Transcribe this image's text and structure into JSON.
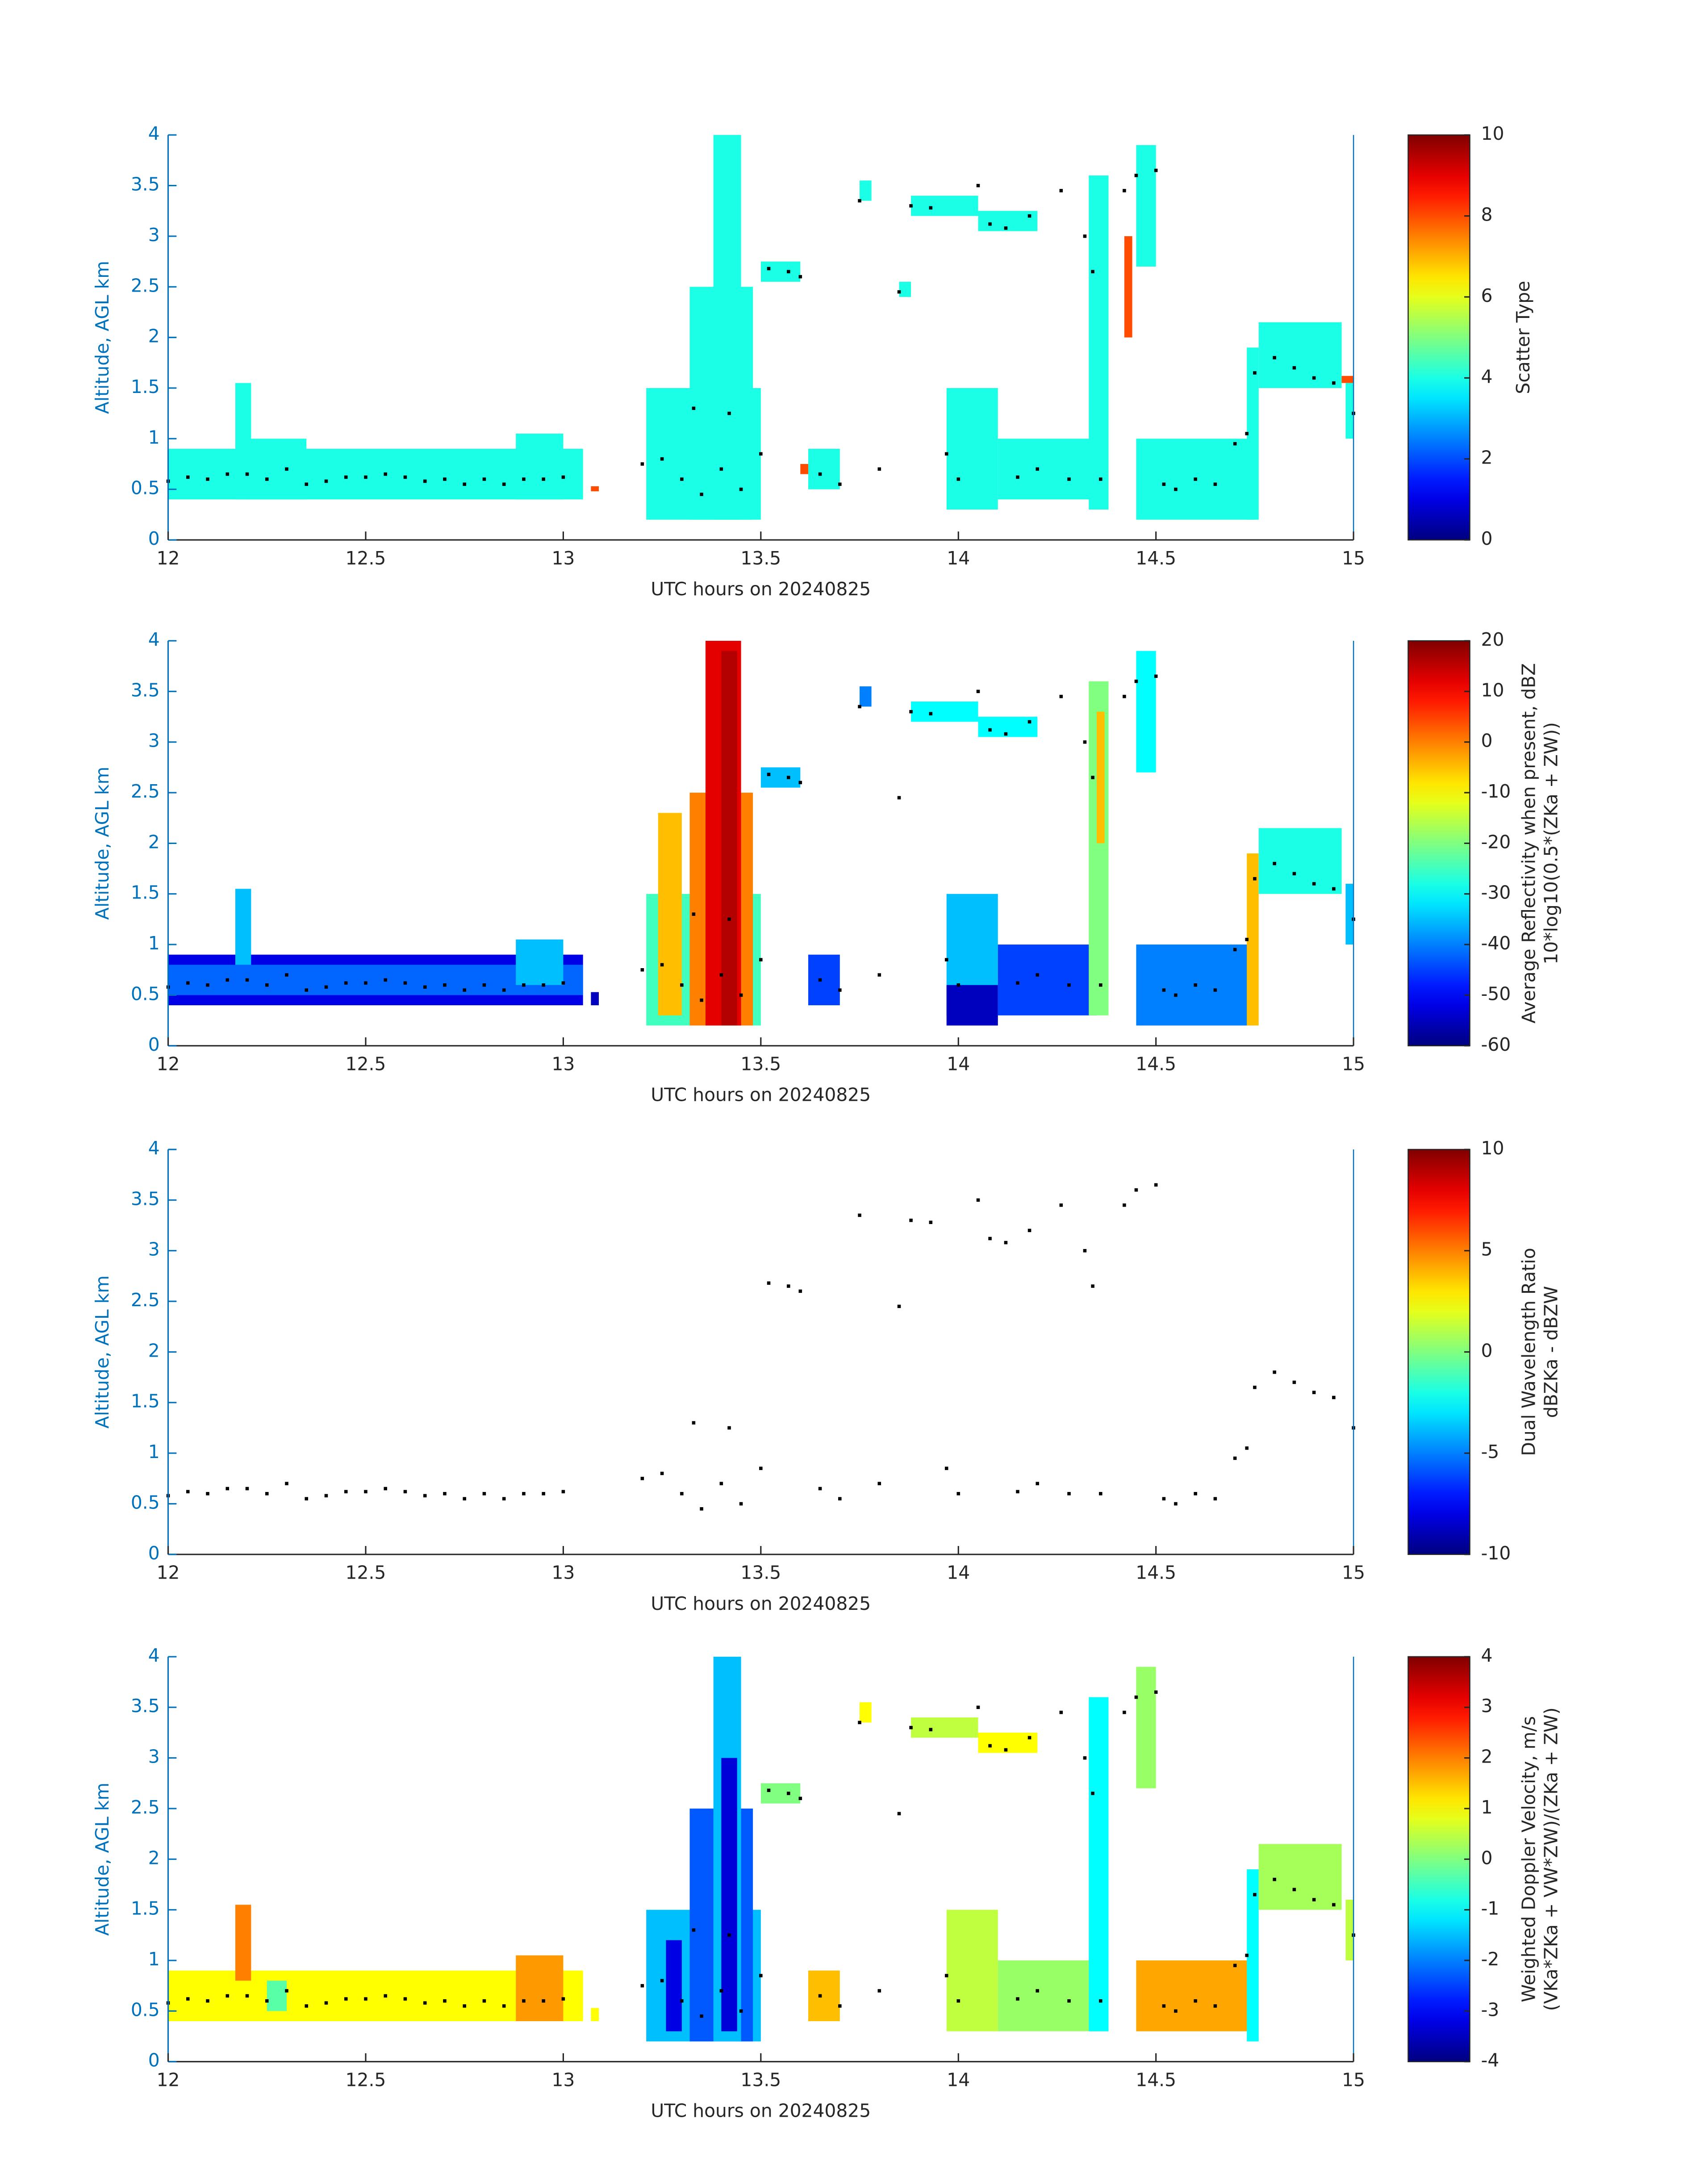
{
  "chart_data": [
    {
      "type": "heatmap",
      "colormap": "jet",
      "xlabel": "UTC hours on 20240825",
      "ylabel": "Altitude, AGL km",
      "xlim": [
        12,
        15
      ],
      "ylim": [
        0,
        4
      ],
      "xticks": [
        12,
        12.5,
        13,
        13.5,
        14,
        14.5,
        15
      ],
      "yticks": [
        0,
        0.5,
        1,
        1.5,
        2,
        2.5,
        3,
        3.5,
        4
      ],
      "colorbar": {
        "label": [
          "Scatter Type"
        ],
        "clim": [
          0,
          10
        ],
        "ticks": [
          0,
          2,
          4,
          6,
          8,
          10
        ]
      },
      "cells": [
        [
          12.0,
          13.05,
          0.4,
          0.9,
          4
        ],
        [
          12.17,
          12.21,
          0.4,
          1.55,
          4
        ],
        [
          12.2,
          12.35,
          0.4,
          1.0,
          4
        ],
        [
          12.88,
          13.0,
          0.4,
          1.05,
          4
        ],
        [
          13.07,
          13.09,
          0.48,
          0.53,
          8
        ],
        [
          13.21,
          13.5,
          0.2,
          1.5,
          4
        ],
        [
          13.32,
          13.48,
          0.2,
          2.5,
          4
        ],
        [
          13.38,
          13.45,
          0.2,
          4.0,
          4
        ],
        [
          13.5,
          13.6,
          2.55,
          2.75,
          4
        ],
        [
          13.6,
          13.62,
          0.65,
          0.75,
          8
        ],
        [
          13.62,
          13.7,
          0.5,
          0.9,
          4
        ],
        [
          13.75,
          13.78,
          3.35,
          3.55,
          4
        ],
        [
          13.85,
          13.88,
          2.4,
          2.55,
          4
        ],
        [
          13.88,
          14.05,
          3.2,
          3.4,
          4
        ],
        [
          13.97,
          14.1,
          0.3,
          1.5,
          4
        ],
        [
          14.05,
          14.2,
          3.05,
          3.25,
          4
        ],
        [
          14.1,
          14.35,
          0.4,
          1.0,
          4
        ],
        [
          14.33,
          14.38,
          0.3,
          3.6,
          4
        ],
        [
          14.42,
          14.44,
          2.0,
          3.0,
          8
        ],
        [
          14.45,
          14.5,
          2.7,
          3.9,
          4
        ],
        [
          14.45,
          14.75,
          0.2,
          1.0,
          4
        ],
        [
          14.73,
          14.76,
          0.2,
          1.9,
          4
        ],
        [
          14.76,
          14.97,
          1.5,
          2.15,
          4
        ],
        [
          14.97,
          15.0,
          1.55,
          1.62,
          8
        ],
        [
          14.98,
          15.0,
          1.0,
          1.55,
          4
        ]
      ],
      "points": {
        "color": "#000000",
        "x": [
          12.0,
          12.05,
          12.1,
          12.15,
          12.2,
          12.25,
          12.3,
          12.35,
          12.4,
          12.45,
          12.5,
          12.55,
          12.6,
          12.65,
          12.7,
          12.75,
          12.8,
          12.85,
          12.9,
          12.95,
          13.0,
          13.2,
          13.25,
          13.3,
          13.33,
          13.35,
          13.4,
          13.42,
          13.45,
          13.5,
          13.52,
          13.57,
          13.6,
          13.65,
          13.7,
          13.75,
          13.8,
          13.85,
          13.88,
          13.93,
          13.97,
          14.0,
          14.05,
          14.08,
          14.12,
          14.15,
          14.18,
          14.2,
          14.26,
          14.28,
          14.32,
          14.34,
          14.36,
          14.42,
          14.45,
          14.5,
          14.52,
          14.55,
          14.6,
          14.65,
          14.7,
          14.73,
          14.75,
          14.8,
          14.85,
          14.9,
          14.95,
          15.0
        ],
        "y": [
          0.58,
          0.62,
          0.6,
          0.65,
          0.65,
          0.6,
          0.7,
          0.55,
          0.58,
          0.62,
          0.62,
          0.65,
          0.62,
          0.58,
          0.6,
          0.55,
          0.6,
          0.55,
          0.6,
          0.6,
          0.62,
          0.75,
          0.8,
          0.6,
          1.3,
          0.45,
          0.7,
          1.25,
          0.5,
          0.85,
          2.68,
          2.65,
          2.6,
          0.65,
          0.55,
          3.35,
          0.7,
          2.45,
          3.3,
          3.28,
          0.85,
          0.6,
          3.5,
          3.12,
          3.08,
          0.62,
          3.2,
          0.7,
          3.45,
          0.6,
          3.0,
          2.65,
          0.6,
          3.45,
          3.6,
          3.65,
          0.55,
          0.5,
          0.6,
          0.55,
          0.95,
          1.05,
          1.65,
          1.8,
          1.7,
          1.6,
          1.55,
          1.25
        ]
      }
    },
    {
      "type": "heatmap",
      "colormap": "jet",
      "xlabel": "UTC hours on 20240825",
      "ylabel": "Altitude, AGL km",
      "xlim": [
        12,
        15
      ],
      "ylim": [
        0,
        4
      ],
      "xticks": [
        12,
        12.5,
        13,
        13.5,
        14,
        14.5,
        15
      ],
      "yticks": [
        0,
        0.5,
        1,
        1.5,
        2,
        2.5,
        3,
        3.5,
        4
      ],
      "colorbar": {
        "label": [
          "Average Reflectivity when present, dBZ",
          "10*log10(0.5*(ZKa + ZW))"
        ],
        "clim": [
          -60,
          20
        ],
        "ticks": [
          -60,
          -50,
          -40,
          -30,
          -20,
          -10,
          0,
          10,
          20
        ]
      },
      "cells": [
        [
          12.0,
          13.05,
          0.4,
          0.9,
          -52
        ],
        [
          12.0,
          13.05,
          0.5,
          0.8,
          -42
        ],
        [
          12.17,
          12.21,
          0.8,
          1.55,
          -35
        ],
        [
          12.88,
          13.0,
          0.6,
          1.05,
          -35
        ],
        [
          13.07,
          13.09,
          0.4,
          0.53,
          -55
        ],
        [
          13.21,
          13.5,
          0.2,
          1.5,
          -25
        ],
        [
          13.24,
          13.3,
          0.3,
          2.3,
          -5
        ],
        [
          13.32,
          13.48,
          0.2,
          2.5,
          0
        ],
        [
          13.36,
          13.45,
          0.2,
          4.0,
          12
        ],
        [
          13.4,
          13.44,
          0.2,
          3.9,
          16
        ],
        [
          13.5,
          13.6,
          2.55,
          2.75,
          -35
        ],
        [
          13.62,
          13.7,
          0.4,
          0.9,
          -45
        ],
        [
          13.75,
          13.78,
          3.35,
          3.55,
          -40
        ],
        [
          13.88,
          14.05,
          3.2,
          3.4,
          -30
        ],
        [
          13.97,
          14.1,
          0.3,
          1.5,
          -35
        ],
        [
          13.97,
          14.1,
          0.2,
          0.6,
          -55
        ],
        [
          14.05,
          14.2,
          3.05,
          3.25,
          -30
        ],
        [
          14.1,
          14.35,
          0.3,
          1.0,
          -45
        ],
        [
          14.33,
          14.38,
          0.3,
          3.6,
          -20
        ],
        [
          14.35,
          14.37,
          2.0,
          3.3,
          -5
        ],
        [
          14.45,
          14.5,
          2.7,
          3.9,
          -30
        ],
        [
          14.45,
          14.75,
          0.2,
          1.0,
          -40
        ],
        [
          14.73,
          14.76,
          0.2,
          1.9,
          -5
        ],
        [
          14.76,
          14.97,
          1.5,
          2.15,
          -28
        ],
        [
          14.98,
          15.0,
          1.0,
          1.6,
          -35
        ]
      ],
      "points": {
        "color": "#000000",
        "x": [
          12.0,
          12.05,
          12.1,
          12.15,
          12.2,
          12.25,
          12.3,
          12.35,
          12.4,
          12.45,
          12.5,
          12.55,
          12.6,
          12.65,
          12.7,
          12.75,
          12.8,
          12.85,
          12.9,
          12.95,
          13.0,
          13.2,
          13.25,
          13.3,
          13.33,
          13.35,
          13.4,
          13.42,
          13.45,
          13.5,
          13.52,
          13.57,
          13.6,
          13.65,
          13.7,
          13.75,
          13.8,
          13.85,
          13.88,
          13.93,
          13.97,
          14.0,
          14.05,
          14.08,
          14.12,
          14.15,
          14.18,
          14.2,
          14.26,
          14.28,
          14.32,
          14.34,
          14.36,
          14.42,
          14.45,
          14.5,
          14.52,
          14.55,
          14.6,
          14.65,
          14.7,
          14.73,
          14.75,
          14.8,
          14.85,
          14.9,
          14.95,
          15.0
        ],
        "y": [
          0.58,
          0.62,
          0.6,
          0.65,
          0.65,
          0.6,
          0.7,
          0.55,
          0.58,
          0.62,
          0.62,
          0.65,
          0.62,
          0.58,
          0.6,
          0.55,
          0.6,
          0.55,
          0.6,
          0.6,
          0.62,
          0.75,
          0.8,
          0.6,
          1.3,
          0.45,
          0.7,
          1.25,
          0.5,
          0.85,
          2.68,
          2.65,
          2.6,
          0.65,
          0.55,
          3.35,
          0.7,
          2.45,
          3.3,
          3.28,
          0.85,
          0.6,
          3.5,
          3.12,
          3.08,
          0.62,
          3.2,
          0.7,
          3.45,
          0.6,
          3.0,
          2.65,
          0.6,
          3.45,
          3.6,
          3.65,
          0.55,
          0.5,
          0.6,
          0.55,
          0.95,
          1.05,
          1.65,
          1.8,
          1.7,
          1.6,
          1.55,
          1.25
        ]
      }
    },
    {
      "type": "heatmap",
      "colormap": "jet",
      "xlabel": "UTC hours on 20240825",
      "ylabel": "Altitude, AGL km",
      "xlim": [
        12,
        15
      ],
      "ylim": [
        0,
        4
      ],
      "xticks": [
        12,
        12.5,
        13,
        13.5,
        14,
        14.5,
        15
      ],
      "yticks": [
        0,
        0.5,
        1,
        1.5,
        2,
        2.5,
        3,
        3.5,
        4
      ],
      "colorbar": {
        "label": [
          "Dual Wavelength Ratio",
          "dBZKa - dBZW"
        ],
        "clim": [
          -10,
          10
        ],
        "ticks": [
          -10,
          -5,
          0,
          5,
          10
        ]
      },
      "cells": [],
      "points": {
        "color": "#000000",
        "x": [
          12.0,
          12.05,
          12.1,
          12.15,
          12.2,
          12.25,
          12.3,
          12.35,
          12.4,
          12.45,
          12.5,
          12.55,
          12.6,
          12.65,
          12.7,
          12.75,
          12.8,
          12.85,
          12.9,
          12.95,
          13.0,
          13.2,
          13.25,
          13.3,
          13.33,
          13.35,
          13.4,
          13.42,
          13.45,
          13.5,
          13.52,
          13.57,
          13.6,
          13.65,
          13.7,
          13.75,
          13.8,
          13.85,
          13.88,
          13.93,
          13.97,
          14.0,
          14.05,
          14.08,
          14.12,
          14.15,
          14.18,
          14.2,
          14.26,
          14.28,
          14.32,
          14.34,
          14.36,
          14.42,
          14.45,
          14.5,
          14.52,
          14.55,
          14.6,
          14.65,
          14.7,
          14.73,
          14.75,
          14.8,
          14.85,
          14.9,
          14.95,
          15.0
        ],
        "y": [
          0.58,
          0.62,
          0.6,
          0.65,
          0.65,
          0.6,
          0.7,
          0.55,
          0.58,
          0.62,
          0.62,
          0.65,
          0.62,
          0.58,
          0.6,
          0.55,
          0.6,
          0.55,
          0.6,
          0.6,
          0.62,
          0.75,
          0.8,
          0.6,
          1.3,
          0.45,
          0.7,
          1.25,
          0.5,
          0.85,
          2.68,
          2.65,
          2.6,
          0.65,
          0.55,
          3.35,
          0.7,
          2.45,
          3.3,
          3.28,
          0.85,
          0.6,
          3.5,
          3.12,
          3.08,
          0.62,
          3.2,
          0.7,
          3.45,
          0.6,
          3.0,
          2.65,
          0.6,
          3.45,
          3.6,
          3.65,
          0.55,
          0.5,
          0.6,
          0.55,
          0.95,
          1.05,
          1.65,
          1.8,
          1.7,
          1.6,
          1.55,
          1.25
        ]
      }
    },
    {
      "type": "heatmap",
      "colormap": "jet",
      "xlabel": "UTC hours on 20240825",
      "ylabel": "Altitude, AGL km",
      "xlim": [
        12,
        15
      ],
      "ylim": [
        0,
        4
      ],
      "xticks": [
        12,
        12.5,
        13,
        13.5,
        14,
        14.5,
        15
      ],
      "yticks": [
        0,
        0.5,
        1,
        1.5,
        2,
        2.5,
        3,
        3.5,
        4
      ],
      "colorbar": {
        "label": [
          "Weighted Doppler Velocity, m/s",
          "(VKa*ZKa + VW*ZW)/(ZKa + ZW)"
        ],
        "clim": [
          -4,
          4
        ],
        "ticks": [
          -4,
          -3,
          -2,
          -1,
          0,
          1,
          2,
          3,
          4
        ]
      },
      "cells": [
        [
          12.0,
          13.05,
          0.4,
          0.9,
          1
        ],
        [
          12.17,
          12.21,
          0.8,
          1.55,
          2
        ],
        [
          12.25,
          12.3,
          0.5,
          0.8,
          -0.3
        ],
        [
          12.88,
          13.0,
          0.4,
          1.05,
          1.8
        ],
        [
          13.07,
          13.09,
          0.4,
          0.53,
          1
        ],
        [
          13.21,
          13.5,
          0.2,
          1.5,
          -1.5
        ],
        [
          13.26,
          13.3,
          0.3,
          1.2,
          -3.2
        ],
        [
          13.32,
          13.48,
          0.2,
          2.5,
          -2.3
        ],
        [
          13.38,
          13.45,
          0.2,
          4.0,
          -1.5
        ],
        [
          13.4,
          13.44,
          0.3,
          3.0,
          -3.3
        ],
        [
          13.5,
          13.6,
          2.55,
          2.75,
          0
        ],
        [
          13.62,
          13.7,
          0.4,
          0.9,
          1.5
        ],
        [
          13.75,
          13.78,
          3.35,
          3.55,
          1
        ],
        [
          13.88,
          14.05,
          3.2,
          3.4,
          0.5
        ],
        [
          13.97,
          14.1,
          0.3,
          1.5,
          0.5
        ],
        [
          14.05,
          14.2,
          3.05,
          3.25,
          1
        ],
        [
          14.1,
          14.35,
          0.3,
          1.0,
          0.2
        ],
        [
          14.33,
          14.38,
          0.3,
          3.6,
          -1
        ],
        [
          14.45,
          14.5,
          2.7,
          3.9,
          0.2
        ],
        [
          14.45,
          14.75,
          0.3,
          1.0,
          1.7
        ],
        [
          14.73,
          14.76,
          0.2,
          1.9,
          -1
        ],
        [
          14.76,
          14.97,
          1.5,
          2.15,
          0.3
        ],
        [
          14.98,
          15.0,
          1.0,
          1.6,
          0.5
        ]
      ],
      "points": {
        "color": "#000000",
        "x": [
          12.0,
          12.05,
          12.1,
          12.15,
          12.2,
          12.25,
          12.3,
          12.35,
          12.4,
          12.45,
          12.5,
          12.55,
          12.6,
          12.65,
          12.7,
          12.75,
          12.8,
          12.85,
          12.9,
          12.95,
          13.0,
          13.2,
          13.25,
          13.3,
          13.33,
          13.35,
          13.4,
          13.42,
          13.45,
          13.5,
          13.52,
          13.57,
          13.6,
          13.65,
          13.7,
          13.75,
          13.8,
          13.85,
          13.88,
          13.93,
          13.97,
          14.0,
          14.05,
          14.08,
          14.12,
          14.15,
          14.18,
          14.2,
          14.26,
          14.28,
          14.32,
          14.34,
          14.36,
          14.42,
          14.45,
          14.5,
          14.52,
          14.55,
          14.6,
          14.65,
          14.7,
          14.73,
          14.75,
          14.8,
          14.85,
          14.9,
          14.95,
          15.0
        ],
        "y": [
          0.58,
          0.62,
          0.6,
          0.65,
          0.65,
          0.6,
          0.7,
          0.55,
          0.58,
          0.62,
          0.62,
          0.65,
          0.62,
          0.58,
          0.6,
          0.55,
          0.6,
          0.55,
          0.6,
          0.6,
          0.62,
          0.75,
          0.8,
          0.6,
          1.3,
          0.45,
          0.7,
          1.25,
          0.5,
          0.85,
          2.68,
          2.65,
          2.6,
          0.65,
          0.55,
          3.35,
          0.7,
          2.45,
          3.3,
          3.28,
          0.85,
          0.6,
          3.5,
          3.12,
          3.08,
          0.62,
          3.2,
          0.7,
          3.45,
          0.6,
          3.0,
          2.65,
          0.6,
          3.45,
          3.6,
          3.65,
          0.55,
          0.5,
          0.6,
          0.55,
          0.95,
          1.05,
          1.65,
          1.8,
          1.7,
          1.6,
          1.55,
          1.25
        ]
      }
    }
  ]
}
